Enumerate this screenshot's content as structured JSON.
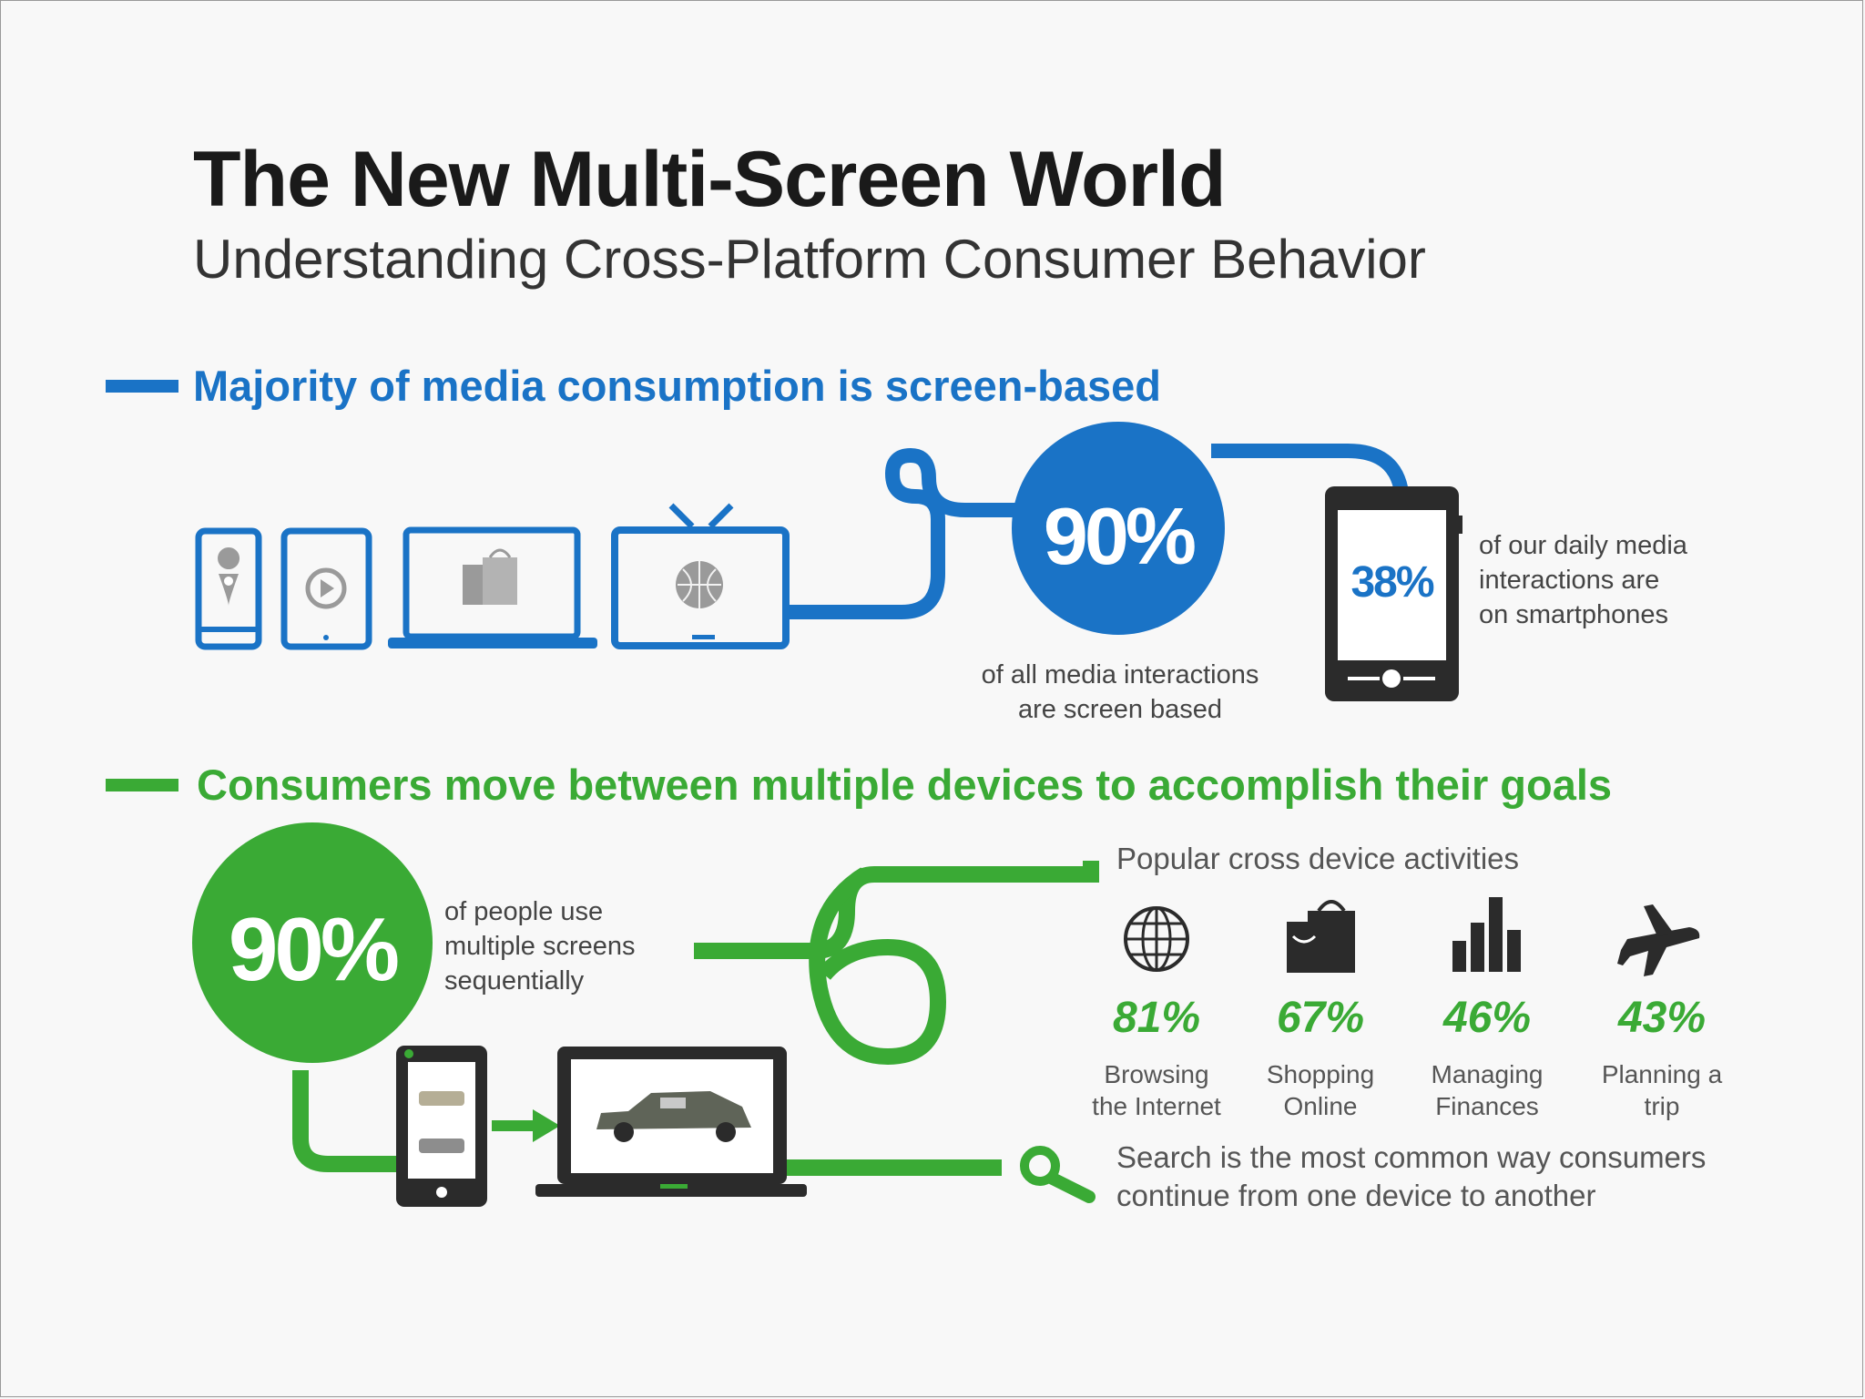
{
  "title": "The New Multi-Screen World",
  "subtitle": "Understanding Cross-Platform Consumer Behavior",
  "section1": {
    "heading": "Majority of media consumption is screen-based",
    "big_stat": "90%",
    "big_stat_caption": [
      "of all media interactions",
      "are screen based"
    ],
    "smartphone_stat": "38%",
    "smartphone_caption": [
      "of our daily media",
      "interactions are",
      "on smartphones"
    ]
  },
  "section2": {
    "heading": "Consumers move between multiple devices to accomplish their goals",
    "big_stat": "90%",
    "big_stat_caption": [
      "of people use",
      "multiple screens",
      "sequentially"
    ],
    "popular_title": "Popular cross device activities",
    "activities": [
      {
        "icon": "globe-icon",
        "pct": "81%",
        "label": [
          "Browsing",
          "the Internet"
        ]
      },
      {
        "icon": "shopping-bag-icon",
        "pct": "67%",
        "label": [
          "Shopping",
          "Online"
        ]
      },
      {
        "icon": "bar-chart-icon",
        "pct": "46%",
        "label": [
          "Managing",
          "Finances"
        ]
      },
      {
        "icon": "airplane-icon",
        "pct": "43%",
        "label": [
          "Planning a",
          "trip"
        ]
      }
    ],
    "search_text": [
      "Search is the most common way consumers",
      "continue from one device to another"
    ]
  },
  "colors": {
    "blue": "#1a73c6",
    "green": "#3aaa35",
    "dark": "#2b2b2b"
  }
}
